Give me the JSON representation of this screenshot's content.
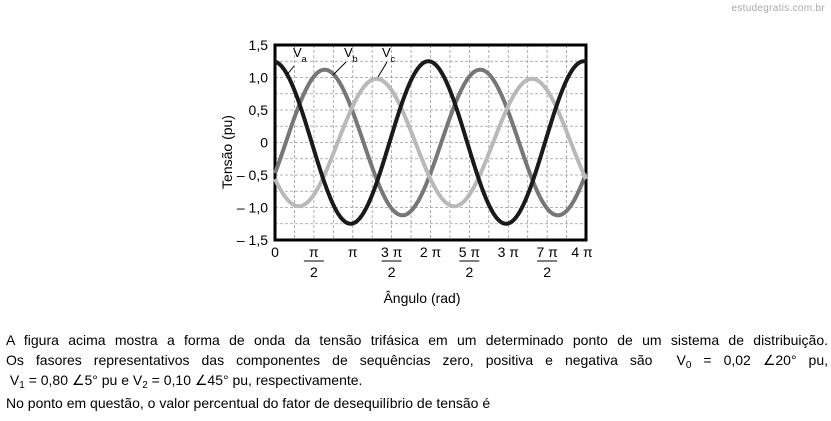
{
  "watermark": "estudegratis.com.br",
  "chart_data": {
    "type": "line",
    "xlabel": "Ângulo (rad)",
    "ylabel": "Tensão (pu)",
    "xlim": [
      0,
      12.566
    ],
    "ylim": [
      -1.5,
      1.5
    ],
    "grid": true,
    "y_ticks": [
      "1,5",
      "1,0",
      "0,5",
      "0",
      "– 0,5",
      "– 1,0",
      "– 1,5"
    ],
    "y_tick_values": [
      1.5,
      1.0,
      0.5,
      0,
      -0.5,
      -1.0,
      -1.5
    ],
    "x_ticks": [
      {
        "value": 0,
        "label": "0"
      },
      {
        "value": 1.5708,
        "num": "π",
        "den": "2"
      },
      {
        "value": 3.1416,
        "label": "π"
      },
      {
        "value": 4.7124,
        "num": "3 π",
        "den": "2"
      },
      {
        "value": 6.2832,
        "label": "2 π"
      },
      {
        "value": 7.854,
        "num": "5 π",
        "den": "2"
      },
      {
        "value": 9.4248,
        "label": "3 π"
      },
      {
        "value": 10.9956,
        "num": "7 π",
        "den": "2"
      },
      {
        "value": 12.5664,
        "label": "4 π"
      }
    ],
    "series": [
      {
        "name": "Va",
        "base": "V",
        "sub": "a",
        "amplitude": 1.25,
        "phase_deg": 5,
        "color": "#1a1a1a"
      },
      {
        "name": "Vb",
        "base": "V",
        "sub": "b",
        "amplitude": 1.12,
        "phase_deg": -115,
        "color": "#777777"
      },
      {
        "name": "Vc",
        "base": "V",
        "sub": "c",
        "amplitude": 0.98,
        "phase_deg": 125,
        "color": "#b9b9b9"
      }
    ]
  },
  "question": {
    "line1": "A figura acima mostra a forma de onda da tensão trifásica em um determinado ponto de um sistema de distribuição.",
    "line2": "Os fasores representativos das componentes de sequências zero, positiva e negativa são",
    "v0_base": "V",
    "v0_sub": "0",
    "v0_value": "= 0,02 ∠20° pu,",
    "v1_base": "V",
    "v1_sub": "1",
    "v1_value": "= 0,80 ∠5° pu",
    "and": "e",
    "v2_base": "V",
    "v2_sub": "2",
    "v2_value": "= 0,10 ∠45° pu, respectivamente.",
    "line4": "No ponto em questão, o valor percentual do fator de desequilíbrio de tensão é"
  }
}
